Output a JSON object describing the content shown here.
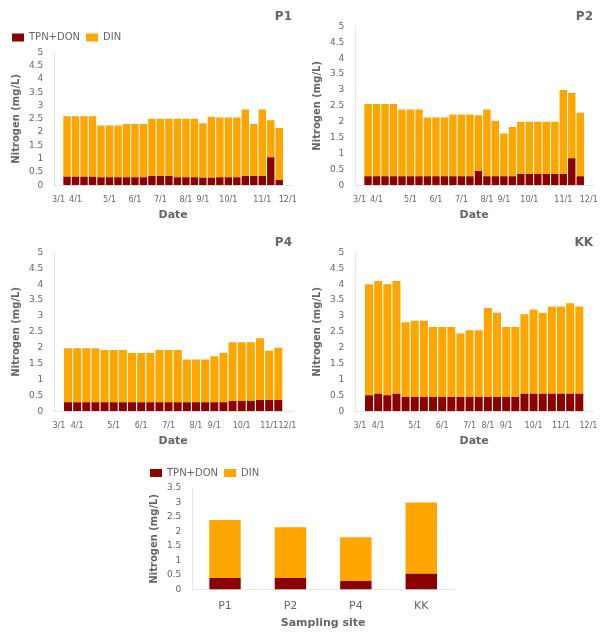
{
  "chart_data": [
    {
      "type": "bar",
      "title": "P1",
      "stacked": true,
      "grid": false,
      "legend": "upper left",
      "x_label": "Date",
      "y_label": "Nitrogen (mg/L)",
      "categories": [
        "3/1",
        null,
        "4/1",
        null,
        null,
        null,
        "5/1",
        null,
        null,
        "6/1",
        null,
        null,
        "7/1",
        null,
        null,
        "8/1",
        null,
        "9/1",
        null,
        null,
        "10/1",
        null,
        null,
        null,
        "11/1",
        null,
        null,
        "12/1"
      ],
      "series": [
        {
          "name": "TPN+DON",
          "color": "#8B0000",
          "values": [
            null,
            0.32,
            0.32,
            0.32,
            0.32,
            0.3,
            0.3,
            0.3,
            0.3,
            0.3,
            0.3,
            0.35,
            0.35,
            0.35,
            0.3,
            0.3,
            0.3,
            0.28,
            0.28,
            0.3,
            0.3,
            0.3,
            0.35,
            0.35,
            0.35,
            1.05,
            0.2,
            null
          ]
        },
        {
          "name": "DIN",
          "color": "#FFA500",
          "values": [
            null,
            2.28,
            2.28,
            2.28,
            2.28,
            1.95,
            1.95,
            1.95,
            2.0,
            2.0,
            2.0,
            2.15,
            2.15,
            2.15,
            2.2,
            2.2,
            2.2,
            2.05,
            2.3,
            2.25,
            2.25,
            2.25,
            2.5,
            1.95,
            2.5,
            1.4,
            1.95,
            null
          ]
        }
      ],
      "ylim": [
        0,
        5
      ],
      "yticks": [
        0,
        0.5,
        1,
        1.5,
        2,
        2.5,
        3,
        3.5,
        4,
        4.5,
        5
      ]
    },
    {
      "type": "bar",
      "title": "P2",
      "stacked": true,
      "grid": false,
      "x_label": "Date",
      "y_label": "Nitrogen (mg/L)",
      "categories": [
        "3/1",
        null,
        "4/1",
        null,
        null,
        null,
        "5/1",
        null,
        null,
        "6/1",
        null,
        null,
        "7/1",
        null,
        null,
        "8/1",
        null,
        "9/1",
        null,
        null,
        "10/1",
        null,
        null,
        null,
        "11/1",
        null,
        null,
        "12/1"
      ],
      "series": [
        {
          "name": "TPN+DON",
          "color": "#8B0000",
          "values": [
            null,
            0.28,
            0.28,
            0.28,
            0.28,
            0.28,
            0.28,
            0.28,
            0.28,
            0.28,
            0.28,
            0.28,
            0.28,
            0.28,
            0.45,
            0.28,
            0.28,
            0.28,
            0.28,
            0.35,
            0.35,
            0.35,
            0.35,
            0.35,
            0.35,
            0.85,
            0.28,
            null
          ]
        },
        {
          "name": "DIN",
          "color": "#FFA500",
          "values": [
            null,
            2.28,
            2.28,
            2.28,
            2.28,
            2.1,
            2.1,
            2.1,
            1.85,
            1.85,
            1.85,
            1.95,
            1.95,
            1.95,
            1.75,
            2.1,
            1.75,
            1.35,
            1.55,
            1.65,
            1.65,
            1.65,
            1.65,
            1.65,
            2.65,
            2.05,
            2.0,
            null
          ]
        }
      ],
      "ylim": [
        0,
        5
      ],
      "yticks": [
        0,
        0.5,
        1,
        1.5,
        2,
        2.5,
        3,
        3.5,
        4,
        4.5,
        5
      ]
    },
    {
      "type": "bar",
      "title": "P4",
      "stacked": true,
      "grid": false,
      "x_label": "Date",
      "y_label": "Nitrogen (mg/L)",
      "categories": [
        "3/1",
        null,
        "4/1",
        null,
        null,
        null,
        "5/1",
        null,
        null,
        "6/1",
        null,
        null,
        "7/1",
        null,
        null,
        "8/1",
        null,
        "9/1",
        null,
        null,
        "10/1",
        null,
        null,
        "11/1",
        null,
        "12/1"
      ],
      "series": [
        {
          "name": "TPN+DON",
          "color": "#8B0000",
          "values": [
            null,
            0.28,
            0.28,
            0.28,
            0.28,
            0.28,
            0.28,
            0.28,
            0.28,
            0.28,
            0.28,
            0.28,
            0.28,
            0.28,
            0.28,
            0.28,
            0.28,
            0.28,
            0.28,
            0.32,
            0.32,
            0.32,
            0.35,
            0.35,
            0.35,
            null
          ]
        },
        {
          "name": "DIN",
          "color": "#FFA500",
          "values": [
            null,
            1.7,
            1.7,
            1.7,
            1.7,
            1.65,
            1.65,
            1.65,
            1.55,
            1.55,
            1.55,
            1.65,
            1.65,
            1.65,
            1.35,
            1.35,
            1.35,
            1.45,
            1.55,
            1.85,
            1.85,
            1.85,
            1.95,
            1.55,
            1.65,
            null
          ]
        }
      ],
      "ylim": [
        0,
        5
      ],
      "yticks": [
        0,
        0.5,
        1,
        1.5,
        2,
        2.5,
        3,
        3.5,
        4,
        4.5,
        5
      ]
    },
    {
      "type": "bar",
      "title": "KK",
      "stacked": true,
      "grid": false,
      "x_label": "Date",
      "y_label": "Nitrogen (mg/L)",
      "categories": [
        "3/1",
        null,
        "4/1",
        null,
        null,
        null,
        "5/1",
        null,
        null,
        "6/1",
        null,
        null,
        "7/1",
        null,
        "8/1",
        null,
        "9/1",
        null,
        null,
        "10/1",
        null,
        null,
        "11/1",
        null,
        null,
        "12/1"
      ],
      "series": [
        {
          "name": "TPN+DON",
          "color": "#8B0000",
          "values": [
            null,
            0.5,
            0.55,
            0.5,
            0.55,
            0.45,
            0.45,
            0.45,
            0.45,
            0.45,
            0.45,
            0.45,
            0.45,
            0.45,
            0.45,
            0.45,
            0.45,
            0.45,
            0.55,
            0.55,
            0.55,
            0.55,
            0.55,
            0.55,
            0.55,
            null
          ]
        },
        {
          "name": "DIN",
          "color": "#FFA500",
          "values": [
            null,
            3.5,
            3.55,
            3.5,
            3.55,
            2.35,
            2.4,
            2.4,
            2.2,
            2.2,
            2.2,
            2.0,
            2.1,
            2.1,
            2.8,
            2.65,
            2.2,
            2.2,
            2.5,
            2.65,
            2.55,
            2.75,
            2.75,
            2.85,
            2.75,
            null
          ]
        }
      ],
      "ylim": [
        0,
        5
      ],
      "yticks": [
        0,
        0.5,
        1,
        1.5,
        2,
        2.5,
        3,
        3.5,
        4,
        4.5,
        5
      ]
    },
    {
      "type": "bar",
      "stacked": true,
      "grid": false,
      "legend": "upper left",
      "x_label": "Sampling site",
      "y_label": "Nitrogen (mg/L)",
      "categories": [
        "P1",
        "P2",
        "P4",
        "KK"
      ],
      "series": [
        {
          "name": "TPN+DON",
          "color": "#8B0000",
          "values": [
            0.4,
            0.4,
            0.3,
            0.55
          ]
        },
        {
          "name": "DIN",
          "color": "#FFA500",
          "values": [
            2.0,
            1.75,
            1.5,
            2.45
          ]
        }
      ],
      "ylim": [
        0,
        3.5
      ],
      "yticks": [
        0,
        0.5,
        1,
        1.5,
        2,
        2.5,
        3,
        3.5
      ]
    }
  ]
}
